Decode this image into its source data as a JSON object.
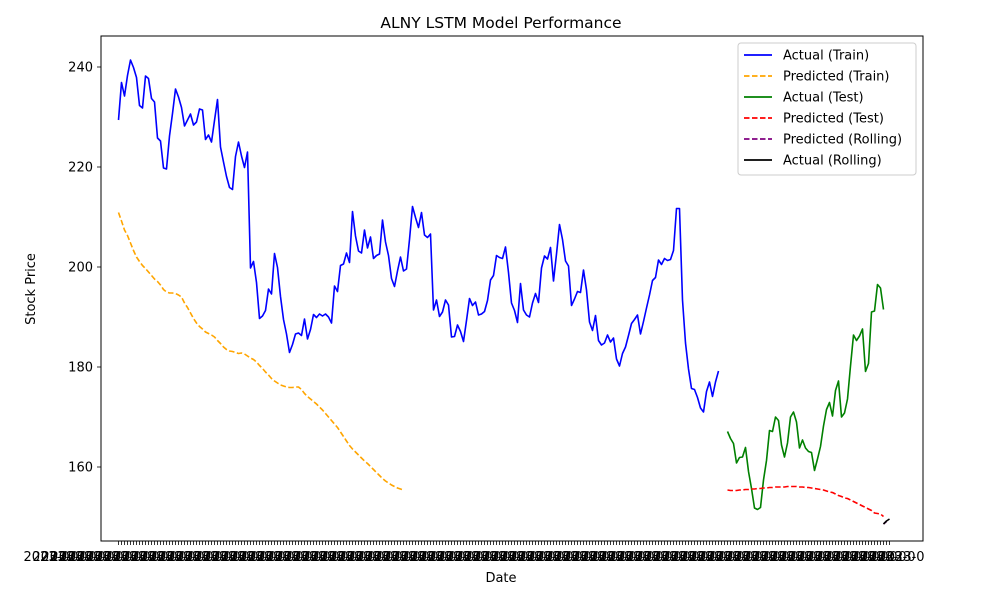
{
  "chart_data": {
    "type": "line",
    "title": "ALNY LSTM Model Performance",
    "xlabel": "Date",
    "ylabel": "Stock Price",
    "ylim": [
      145.2,
      246.2
    ],
    "yticks": [
      160,
      180,
      200,
      220,
      240
    ],
    "grid": false,
    "legend_position": "top-right",
    "x_tick_labels_note": "dense overlapping date tick labels (illegible)",
    "series": [
      {
        "name": "Actual (Train)",
        "color": "#0000ff",
        "dash": "solid",
        "x_start": 0,
        "values": [
          229.4,
          236.9,
          234.2,
          238.3,
          241.4,
          239.9,
          237.9,
          232.3,
          231.8,
          238.2,
          237.7,
          233.7,
          233.0,
          225.8,
          225.2,
          219.8,
          219.6,
          226.2,
          230.7,
          235.6,
          234.0,
          231.9,
          228.2,
          229.4,
          230.6,
          228.4,
          229.0,
          231.6,
          231.4,
          225.5,
          226.4,
          225.0,
          229.3,
          233.5,
          224.0,
          221.0,
          218.1,
          215.9,
          215.5,
          222.1,
          225.0,
          222.2,
          219.9,
          223.0,
          199.8,
          201.1,
          196.9,
          189.7,
          190.2,
          191.3,
          195.6,
          194.6,
          202.7,
          199.9,
          194.1,
          189.5,
          186.6,
          182.9,
          184.5,
          186.6,
          186.8,
          186.3,
          189.6,
          185.6,
          187.5,
          190.5,
          189.9,
          190.6,
          190.2,
          190.6,
          190.0,
          188.8,
          196.2,
          195.1,
          200.3,
          200.6,
          202.8,
          200.9,
          211.1,
          206.2,
          203.2,
          202.8,
          207.4,
          203.8,
          206.0,
          201.7,
          202.3,
          202.6,
          209.4,
          205.0,
          202.3,
          197.7,
          196.1,
          199.2,
          202.0,
          199.2,
          199.6,
          205.5,
          212.1,
          209.9,
          207.9,
          210.9,
          206.4,
          205.9,
          206.6,
          191.4,
          193.4,
          190.1,
          191.0,
          193.4,
          192.4,
          186.0,
          186.1,
          188.4,
          187.1,
          185.1,
          189.3,
          193.7,
          192.3,
          193.0,
          190.4,
          190.6,
          191.1,
          193.3,
          197.4,
          198.3,
          202.3,
          201.9,
          201.7,
          204.0,
          198.9,
          192.8,
          191.3,
          188.9,
          196.7,
          191.4,
          190.4,
          190.0,
          192.8,
          194.7,
          192.9,
          199.8,
          202.2,
          201.6,
          203.9,
          197.2,
          202.6,
          208.5,
          205.5,
          201.2,
          200.2,
          192.3,
          193.6,
          195.1,
          194.9,
          199.4,
          195.4,
          189.0,
          187.3,
          190.3,
          185.3,
          184.4,
          184.8,
          186.4,
          185.0,
          185.8,
          181.6,
          180.2,
          182.7,
          184.0,
          186.3,
          188.7,
          189.5,
          190.4,
          186.6,
          189.1,
          191.8,
          194.4,
          197.3,
          197.9,
          201.4,
          200.5,
          201.7,
          201.3,
          201.5,
          203.3,
          211.7,
          211.7,
          193.4,
          184.8,
          179.6,
          175.7,
          175.5,
          173.9,
          171.8,
          171.0,
          175.1,
          177.0,
          174.1,
          177.0,
          179.2
        ]
      },
      {
        "name": "Predicted (Train)",
        "color": "#ffa500",
        "dash": "dashed",
        "x_start": 0,
        "values": [
          210.9,
          209.2,
          207.4,
          206.3,
          204.8,
          203.3,
          202.0,
          201.1,
          200.3,
          199.7,
          199.0,
          198.3,
          197.6,
          197.1,
          196.4,
          195.5,
          195.0,
          194.8,
          194.8,
          194.7,
          194.4,
          194.0,
          192.8,
          191.9,
          190.8,
          189.7,
          188.8,
          188.1,
          187.6,
          187.0,
          186.7,
          186.4,
          186.0,
          185.3,
          184.7,
          184.0,
          183.5,
          183.2,
          183.1,
          182.9,
          182.7,
          182.8,
          182.6,
          182.2,
          181.8,
          181.5,
          181.0,
          180.3,
          179.7,
          179.0,
          178.4,
          177.7,
          177.2,
          176.8,
          176.4,
          176.2,
          176.0,
          175.9,
          175.9,
          176.0,
          176.0,
          175.5,
          174.7,
          174.1,
          173.6,
          173.1,
          172.6,
          172.0,
          171.4,
          170.7,
          170.0,
          169.3,
          168.6,
          167.9,
          167.0,
          166.1,
          165.2,
          164.3,
          163.6,
          163.0,
          162.4,
          161.8,
          161.2,
          160.7,
          160.1,
          159.5,
          158.9,
          158.3,
          157.7,
          157.2,
          156.8,
          156.4,
          156.1,
          155.8,
          155.6,
          155.4
        ]
      },
      {
        "name": "Actual (Test)",
        "color": "#008000",
        "dash": "solid",
        "x_start": 203,
        "values": [
          167.1,
          165.7,
          164.7,
          160.8,
          161.9,
          162.0,
          163.9,
          159.1,
          155.7,
          151.8,
          151.5,
          151.9,
          157.4,
          161.3,
          167.3,
          167.1,
          170.0,
          169.3,
          164.4,
          162.0,
          164.8,
          170.0,
          171.0,
          169.0,
          163.8,
          165.4,
          163.8,
          163.1,
          162.9,
          159.3,
          161.6,
          164.1,
          168.2,
          171.5,
          172.9,
          170.2,
          175.3,
          177.2,
          170.0,
          170.8,
          173.6,
          180.2,
          186.4,
          185.3,
          186.2,
          187.6,
          179.1,
          180.7,
          191.0,
          191.2,
          196.5,
          195.8,
          191.5
        ]
      },
      {
        "name": "Predicted (Test)",
        "color": "#ff0000",
        "dash": "dashed",
        "x_start": 203,
        "values": [
          155.4,
          155.3,
          155.3,
          155.3,
          155.4,
          155.4,
          155.5,
          155.5,
          155.6,
          155.6,
          155.7,
          155.7,
          155.8,
          155.8,
          155.9,
          155.9,
          156.0,
          156.0,
          156.0,
          156.0,
          156.1,
          156.1,
          156.1,
          156.1,
          156.0,
          156.0,
          155.9,
          155.9,
          155.8,
          155.7,
          155.6,
          155.5,
          155.4,
          155.2,
          155.0,
          154.9,
          154.6,
          154.3,
          154.1,
          153.8,
          153.7,
          153.4,
          153.1,
          152.8,
          152.5,
          152.2,
          151.9,
          151.6,
          151.3,
          150.8,
          150.7,
          150.6,
          150.1
        ]
      },
      {
        "name": "Predicted (Rolling)",
        "color": "#800080",
        "dash": "dashed",
        "x_start": 255,
        "values": [
          148.6,
          149.1
        ]
      },
      {
        "name": "Actual (Rolling)",
        "color": "#000000",
        "dash": "solid",
        "x_start": 255,
        "values": [
          148.6,
          149.2,
          149.6
        ]
      }
    ]
  }
}
